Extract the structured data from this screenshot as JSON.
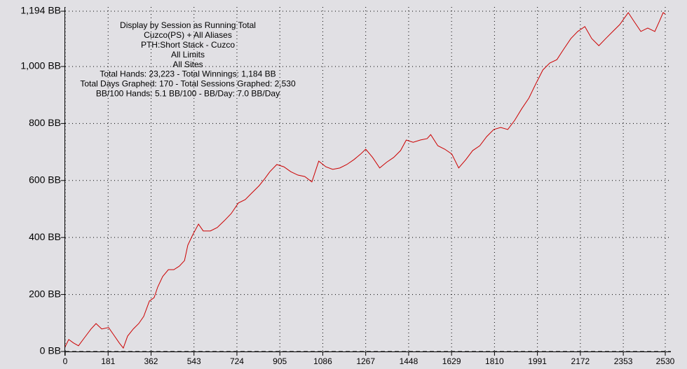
{
  "chart_data": {
    "type": "line",
    "annotation": [
      "Display by Session as Running Total",
      "Cuzco(PS) + All Aliases",
      "PTH:Short Stack - Cuzco",
      "All Limits",
      "All Sites",
      "Total Hands: 23,223 - Total Winnings: 1,184 BB",
      "Total Days Graphed: 170 - Total Sessions Graphed: 2,530",
      "BB/100 Hands: 5.1 BB/100 - BB/Day: 7.0 BB/Day"
    ],
    "x": [
      0,
      15,
      35,
      56,
      80,
      109,
      130,
      154,
      183,
      204,
      228,
      245,
      263,
      287,
      310,
      331,
      355,
      375,
      390,
      411,
      435,
      458,
      482,
      503,
      517,
      538,
      562,
      582,
      612,
      641,
      671,
      700,
      730,
      759,
      789,
      818,
      842,
      863,
      892,
      922,
      951,
      981,
      1010,
      1040,
      1069,
      1099,
      1128,
      1158,
      1187,
      1217,
      1246,
      1267,
      1296,
      1326,
      1355,
      1385,
      1414,
      1438,
      1467,
      1497,
      1526,
      1541,
      1571,
      1600,
      1630,
      1659,
      1689,
      1718,
      1748,
      1777,
      1807,
      1836,
      1866,
      1895,
      1925,
      1955,
      1984,
      2014,
      2043,
      2073,
      2102,
      2132,
      2161,
      2191,
      2220,
      2250,
      2279,
      2309,
      2338,
      2374,
      2397,
      2427,
      2456,
      2486,
      2506,
      2521,
      2530
    ],
    "values": [
      17,
      42,
      30,
      20,
      47,
      79,
      98,
      79,
      84,
      59,
      30,
      12,
      54,
      79,
      98,
      123,
      177,
      189,
      226,
      263,
      287,
      287,
      300,
      319,
      373,
      410,
      447,
      423,
      423,
      435,
      459,
      484,
      521,
      533,
      558,
      582,
      607,
      631,
      656,
      648,
      631,
      619,
      614,
      595,
      668,
      648,
      639,
      644,
      656,
      673,
      693,
      710,
      681,
      644,
      664,
      681,
      705,
      742,
      734,
      742,
      747,
      761,
      722,
      710,
      693,
      644,
      673,
      705,
      722,
      754,
      779,
      786,
      779,
      811,
      852,
      889,
      939,
      988,
      1012,
      1024,
      1061,
      1098,
      1123,
      1140,
      1098,
      1073,
      1098,
      1123,
      1147,
      1189,
      1160,
      1123,
      1135,
      1123,
      1160,
      1189,
      1184
    ],
    "color": "#cc0000",
    "xlim": [
      0,
      2530
    ],
    "xticks": [
      0,
      181,
      362,
      543,
      724,
      905,
      1086,
      1267,
      1448,
      1629,
      1810,
      1991,
      2172,
      2353,
      2530
    ],
    "ylim": [
      0,
      1194
    ],
    "yticks": [
      {
        "value": 0,
        "label": "0 BB"
      },
      {
        "value": 200,
        "label": "200 BB"
      },
      {
        "value": 400,
        "label": "400 BB"
      },
      {
        "value": 600,
        "label": "600 BB"
      },
      {
        "value": 800,
        "label": "800 BB"
      },
      {
        "value": 1000,
        "label": "1,000 BB"
      },
      {
        "value": 1194,
        "label": "1,194 BB"
      }
    ],
    "grid": true
  }
}
